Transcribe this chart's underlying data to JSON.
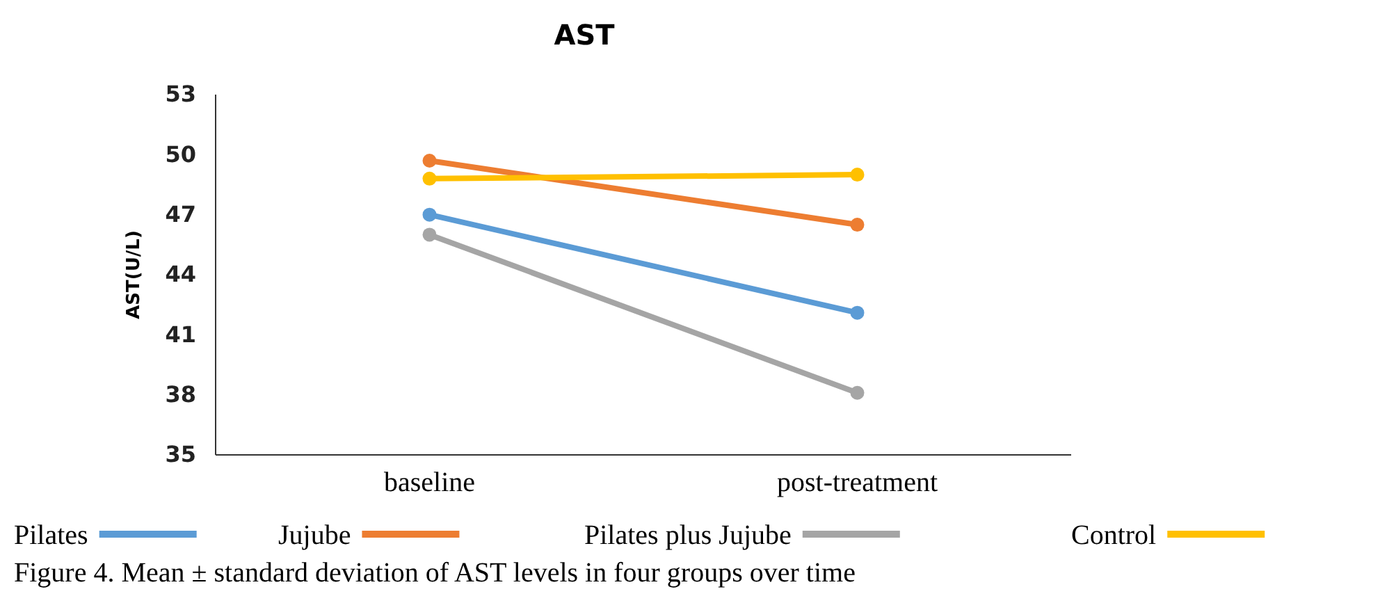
{
  "chart_data": {
    "type": "line",
    "title": "AST",
    "ylabel": "AST(U/L)",
    "categories": [
      "baseline",
      "post-treatment"
    ],
    "series": [
      {
        "name": "Pilates",
        "color": "#5b9bd5",
        "values": [
          47,
          42.1
        ]
      },
      {
        "name": "Jujube",
        "color": "#ed7d31",
        "values": [
          49.7,
          46.5
        ]
      },
      {
        "name": "Pilates plus Jujube",
        "color": "#a5a5a5",
        "values": [
          46,
          38.1
        ]
      },
      {
        "name": "Control",
        "color": "#ffc000",
        "values": [
          48.8,
          49
        ]
      }
    ],
    "ylim": [
      35,
      53
    ],
    "yticks": [
      35,
      38,
      41,
      44,
      47,
      50,
      53
    ],
    "grid": false,
    "legend": "bottom",
    "marker": "circle",
    "line_style": "solid",
    "annotations": [
      "Figure 4. Mean ± standard deviation of AST levels in four groups over time"
    ]
  }
}
